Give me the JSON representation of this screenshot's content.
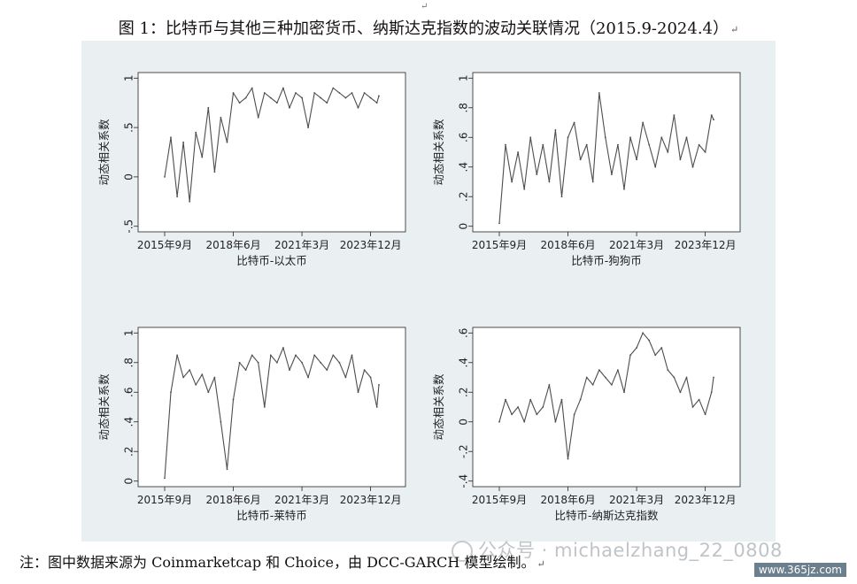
{
  "title": "图 1：比特币与其他三种加密货币、纳斯达克指数的波动关联情况（2015.9-2024.4）",
  "note": "注：图中数据来源为 Coinmarketcap 和 Choice，由 DCC-GARCH 模型绘制。",
  "return_mark": "↵",
  "watermark": {
    "text": "公众号 · michaelzhang_22_0808",
    "icon": "wechat-icon"
  },
  "site": "www.365jz.com",
  "colors": {
    "panel_bg": "#eaeff2",
    "plot_bg": "#ffffff",
    "line": "#4d4d4d"
  },
  "chart_data": [
    {
      "type": "line",
      "xlabel": "比特币-以太币",
      "ylabel": "动态相关系数",
      "x_ticks": [
        "2015年9月",
        "2018年6月",
        "2021年3月",
        "2023年12月"
      ],
      "y_ticks": [
        "-.5",
        "0",
        ".5",
        "1"
      ],
      "ylim": [
        -0.5,
        1
      ],
      "x_range": [
        "2015-09",
        "2024-04"
      ],
      "grid": false,
      "series": [
        {
          "x": [
            "2015-09",
            "2015-12",
            "2016-03",
            "2016-06",
            "2016-09",
            "2016-12",
            "2017-03",
            "2017-06",
            "2017-09",
            "2017-12",
            "2018-03",
            "2018-06",
            "2018-09",
            "2018-12",
            "2019-03",
            "2019-06",
            "2019-09",
            "2019-12",
            "2020-03",
            "2020-06",
            "2020-09",
            "2020-12",
            "2021-03",
            "2021-06",
            "2021-09",
            "2021-12",
            "2022-03",
            "2022-06",
            "2022-09",
            "2022-12",
            "2023-03",
            "2023-06",
            "2023-09",
            "2023-12",
            "2024-03",
            "2024-04"
          ],
          "values": [
            0.0,
            0.4,
            -0.2,
            0.35,
            -0.25,
            0.45,
            0.2,
            0.7,
            0.05,
            0.6,
            0.35,
            0.85,
            0.75,
            0.8,
            0.9,
            0.6,
            0.85,
            0.8,
            0.75,
            0.9,
            0.7,
            0.85,
            0.8,
            0.5,
            0.85,
            0.8,
            0.75,
            0.9,
            0.85,
            0.8,
            0.85,
            0.7,
            0.85,
            0.8,
            0.75,
            0.82
          ]
        }
      ]
    },
    {
      "type": "line",
      "xlabel": "比特币-狗狗币",
      "ylabel": "动态相关系数",
      "x_ticks": [
        "2015年9月",
        "2018年6月",
        "2021年3月",
        "2023年12月"
      ],
      "y_ticks": [
        "0",
        ".2",
        ".4",
        ".6",
        ".8",
        "1"
      ],
      "ylim": [
        0,
        1
      ],
      "x_range": [
        "2015-09",
        "2024-04"
      ],
      "grid": false,
      "series": [
        {
          "x": [
            "2015-09",
            "2015-12",
            "2016-03",
            "2016-06",
            "2016-09",
            "2016-12",
            "2017-03",
            "2017-06",
            "2017-09",
            "2017-12",
            "2018-03",
            "2018-06",
            "2018-09",
            "2018-12",
            "2019-03",
            "2019-06",
            "2019-09",
            "2019-12",
            "2020-03",
            "2020-06",
            "2020-09",
            "2020-12",
            "2021-03",
            "2021-06",
            "2021-09",
            "2021-12",
            "2022-03",
            "2022-06",
            "2022-09",
            "2022-12",
            "2023-03",
            "2023-06",
            "2023-09",
            "2023-12",
            "2024-03",
            "2024-04"
          ],
          "values": [
            0.02,
            0.55,
            0.3,
            0.5,
            0.25,
            0.6,
            0.35,
            0.55,
            0.3,
            0.65,
            0.2,
            0.6,
            0.7,
            0.45,
            0.55,
            0.3,
            0.9,
            0.6,
            0.35,
            0.55,
            0.25,
            0.6,
            0.45,
            0.7,
            0.55,
            0.4,
            0.6,
            0.5,
            0.75,
            0.45,
            0.6,
            0.4,
            0.55,
            0.5,
            0.75,
            0.72
          ]
        }
      ]
    },
    {
      "type": "line",
      "xlabel": "比特币-莱特币",
      "ylabel": "动态相关系数",
      "x_ticks": [
        "2015年9月",
        "2018年6月",
        "2021年3月",
        "2023年12月"
      ],
      "y_ticks": [
        "0",
        ".2",
        ".4",
        ".6",
        ".8",
        "1"
      ],
      "ylim": [
        0,
        1
      ],
      "x_range": [
        "2015-09",
        "2024-04"
      ],
      "grid": false,
      "series": [
        {
          "x": [
            "2015-09",
            "2015-12",
            "2016-03",
            "2016-06",
            "2016-09",
            "2016-12",
            "2017-03",
            "2017-06",
            "2017-09",
            "2017-12",
            "2018-03",
            "2018-06",
            "2018-09",
            "2018-12",
            "2019-03",
            "2019-06",
            "2019-09",
            "2019-12",
            "2020-03",
            "2020-06",
            "2020-09",
            "2020-12",
            "2021-03",
            "2021-06",
            "2021-09",
            "2021-12",
            "2022-03",
            "2022-06",
            "2022-09",
            "2022-12",
            "2023-03",
            "2023-06",
            "2023-09",
            "2023-12",
            "2024-03",
            "2024-04"
          ],
          "values": [
            0.02,
            0.6,
            0.85,
            0.7,
            0.75,
            0.65,
            0.72,
            0.6,
            0.7,
            0.4,
            0.08,
            0.55,
            0.8,
            0.75,
            0.85,
            0.8,
            0.5,
            0.85,
            0.8,
            0.9,
            0.75,
            0.85,
            0.8,
            0.7,
            0.85,
            0.8,
            0.75,
            0.85,
            0.8,
            0.7,
            0.85,
            0.6,
            0.75,
            0.7,
            0.5,
            0.65
          ]
        }
      ]
    },
    {
      "type": "line",
      "xlabel": "比特币-纳斯达克指数",
      "ylabel": "动态相关系数",
      "x_ticks": [
        "2015年9月",
        "2018年6月",
        "2021年3月",
        "2023年12月"
      ],
      "y_ticks": [
        "-.4",
        "-.2",
        "0",
        ".2",
        ".4",
        ".6"
      ],
      "ylim": [
        -0.4,
        0.6
      ],
      "x_range": [
        "2015-09",
        "2024-04"
      ],
      "grid": false,
      "series": [
        {
          "x": [
            "2015-09",
            "2015-12",
            "2016-03",
            "2016-06",
            "2016-09",
            "2016-12",
            "2017-03",
            "2017-06",
            "2017-09",
            "2017-12",
            "2018-03",
            "2018-06",
            "2018-09",
            "2018-12",
            "2019-03",
            "2019-06",
            "2019-09",
            "2019-12",
            "2020-03",
            "2020-06",
            "2020-09",
            "2020-12",
            "2021-03",
            "2021-06",
            "2021-09",
            "2021-12",
            "2022-03",
            "2022-06",
            "2022-09",
            "2022-12",
            "2023-03",
            "2023-06",
            "2023-09",
            "2023-12",
            "2024-03",
            "2024-04"
          ],
          "values": [
            0.0,
            0.15,
            0.05,
            0.1,
            0.0,
            0.15,
            0.05,
            0.1,
            0.25,
            0.0,
            0.15,
            -0.25,
            0.05,
            0.15,
            0.3,
            0.25,
            0.35,
            0.3,
            0.25,
            0.35,
            0.2,
            0.45,
            0.5,
            0.6,
            0.55,
            0.45,
            0.5,
            0.35,
            0.3,
            0.2,
            0.3,
            0.1,
            0.15,
            0.05,
            0.2,
            0.3
          ]
        }
      ]
    }
  ]
}
